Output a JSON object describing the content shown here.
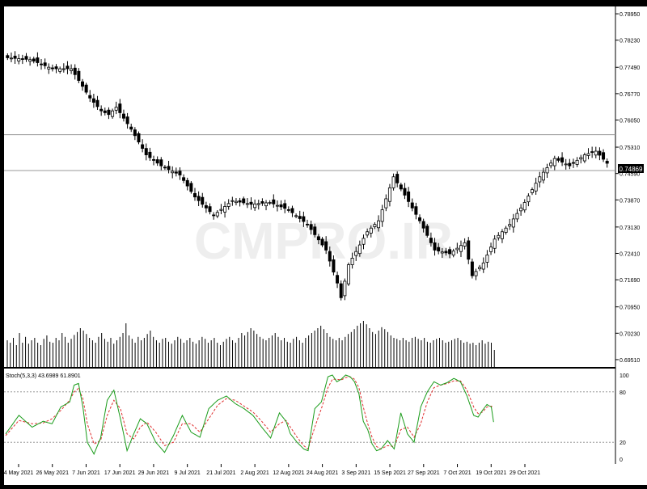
{
  "watermark": "CMPRO.IR",
  "price_panel": {
    "y_ticks": [
      "0.78950",
      "0.78230",
      "0.77490",
      "0.76770",
      "0.76050",
      "0.75310",
      "0.74590",
      "0.73870",
      "0.73130",
      "0.72410",
      "0.71690",
      "0.70950",
      "0.70230",
      "0.69510"
    ],
    "current_price_label": "0.74869",
    "levels": [
      {
        "name": "resistance",
        "value": 0.7565
      },
      {
        "name": "support",
        "value": 0.7467
      }
    ],
    "volume_visible": true
  },
  "stoch_panel": {
    "label": "Stoch(5,3,3) 43.6989 61.8901",
    "y_ticks": [
      "100",
      "80",
      "20",
      "0"
    ],
    "levels": [
      80,
      20
    ],
    "main_color": "#1a9c1a",
    "signal_color": "#e03030"
  },
  "x_ticks": [
    "4 May 2021",
    "26 May 2021",
    "7 Jun 2021",
    "17 Jun 2021",
    "29 Jun 2021",
    "9 Jul 2021",
    "21 Jul 2021",
    "2 Aug 2021",
    "12 Aug 2021",
    "24 Aug 2021",
    "3 Sep 2021",
    "15 Sep 2021",
    "27 Sep 2021",
    "7 Oct 2021",
    "19 Oct 2021",
    "29 Oct 2021"
  ],
  "chart_data": {
    "type": "candlestick",
    "ylim": [
      0.6931,
      0.7915
    ],
    "close_anchors": [
      [
        0,
        0.7775
      ],
      [
        6,
        0.777
      ],
      [
        12,
        0.7745
      ],
      [
        17,
        0.7745
      ],
      [
        22,
        0.7665
      ],
      [
        25,
        0.763
      ],
      [
        27,
        0.762
      ],
      [
        29,
        0.764
      ],
      [
        33,
        0.758
      ],
      [
        37,
        0.751
      ],
      [
        41,
        0.748
      ],
      [
        46,
        0.7455
      ],
      [
        50,
        0.7395
      ],
      [
        55,
        0.7345
      ],
      [
        60,
        0.7385
      ],
      [
        65,
        0.7375
      ],
      [
        70,
        0.738
      ],
      [
        75,
        0.736
      ],
      [
        80,
        0.732
      ],
      [
        85,
        0.725
      ],
      [
        88,
        0.716
      ],
      [
        89,
        0.712
      ],
      [
        91,
        0.721
      ],
      [
        96,
        0.73
      ],
      [
        99,
        0.733
      ],
      [
        103,
        0.745
      ],
      [
        106,
        0.74
      ],
      [
        110,
        0.733
      ],
      [
        114,
        0.725
      ],
      [
        118,
        0.724
      ],
      [
        122,
        0.727
      ],
      [
        124,
        0.718
      ],
      [
        127,
        0.7215
      ],
      [
        130,
        0.728
      ],
      [
        134,
        0.732
      ],
      [
        138,
        0.738
      ],
      [
        142,
        0.745
      ],
      [
        146,
        0.75
      ],
      [
        150,
        0.748
      ],
      [
        154,
        0.751
      ],
      [
        157,
        0.752
      ],
      [
        160,
        0.7487
      ]
    ],
    "volume_series": [
      0.55,
      0.5,
      0.6,
      0.45,
      0.7,
      0.5,
      0.62,
      0.48,
      0.55,
      0.6,
      0.5,
      0.45,
      0.58,
      0.65,
      0.52,
      0.5,
      0.6,
      0.55,
      0.7,
      0.62,
      0.5,
      0.58,
      0.66,
      0.72,
      0.8,
      0.75,
      0.68,
      0.6,
      0.55,
      0.5,
      0.62,
      0.7,
      0.58,
      0.52,
      0.6,
      0.48,
      0.55,
      0.62,
      0.7,
      0.9,
      0.65,
      0.58,
      0.5,
      0.62,
      0.55,
      0.6,
      0.68,
      0.75,
      0.62,
      0.55,
      0.5,
      0.58,
      0.6,
      0.52,
      0.48,
      0.55,
      0.62,
      0.58,
      0.5,
      0.55,
      0.6,
      0.52,
      0.48,
      0.55,
      0.62,
      0.58,
      0.5,
      0.55,
      0.6,
      0.5,
      0.45,
      0.52,
      0.58,
      0.62,
      0.55,
      0.5,
      0.6,
      0.7,
      0.65,
      0.72,
      0.8,
      0.75,
      0.68,
      0.62,
      0.58,
      0.55,
      0.6,
      0.65,
      0.7,
      0.62,
      0.55,
      0.6,
      0.52,
      0.5,
      0.58,
      0.62,
      0.55,
      0.5,
      0.6,
      0.65,
      0.7,
      0.75,
      0.8,
      0.85,
      0.78,
      0.7,
      0.62,
      0.58,
      0.55,
      0.6,
      0.55,
      0.62,
      0.68,
      0.72,
      0.78,
      0.85,
      0.9,
      0.95,
      0.88,
      0.8,
      0.72,
      0.68,
      0.75,
      0.82,
      0.78,
      0.72,
      0.65,
      0.6,
      0.58,
      0.55,
      0.6,
      0.55,
      0.52,
      0.6,
      0.62,
      0.58,
      0.55,
      0.6,
      0.52,
      0.5,
      0.55,
      0.58,
      0.6,
      0.55,
      0.5,
      0.52,
      0.55,
      0.58,
      0.6,
      0.55,
      0.5,
      0.52,
      0.48,
      0.5,
      0.45,
      0.5,
      0.55,
      0.48,
      0.52,
      0.5,
      0.35
    ],
    "stoch_main_anchors": [
      [
        0,
        30
      ],
      [
        6,
        52
      ],
      [
        12,
        38
      ],
      [
        17,
        45
      ],
      [
        21,
        42
      ],
      [
        25,
        62
      ],
      [
        29,
        68
      ],
      [
        31,
        88
      ],
      [
        33,
        90
      ],
      [
        35,
        62
      ],
      [
        37,
        20
      ],
      [
        40,
        6
      ],
      [
        43,
        25
      ],
      [
        46,
        70
      ],
      [
        49,
        82
      ],
      [
        52,
        48
      ],
      [
        55,
        10
      ],
      [
        58,
        30
      ],
      [
        61,
        48
      ],
      [
        64,
        42
      ],
      [
        68,
        20
      ],
      [
        72,
        8
      ],
      [
        76,
        28
      ],
      [
        80,
        52
      ],
      [
        84,
        32
      ],
      [
        88,
        26
      ],
      [
        92,
        60
      ],
      [
        96,
        70
      ],
      [
        100,
        75
      ],
      [
        104,
        66
      ],
      [
        108,
        60
      ],
      [
        112,
        52
      ],
      [
        116,
        38
      ],
      [
        120,
        25
      ],
      [
        124,
        55
      ],
      [
        127,
        45
      ],
      [
        129,
        30
      ],
      [
        132,
        20
      ],
      [
        135,
        12
      ],
      [
        137,
        10
      ],
      [
        140,
        60
      ],
      [
        143,
        68
      ],
      [
        146,
        98
      ],
      [
        148,
        100
      ],
      [
        150,
        92
      ],
      [
        152,
        95
      ],
      [
        154,
        100
      ],
      [
        156,
        98
      ],
      [
        158,
        92
      ],
      [
        160,
        78
      ],
      [
        162,
        45
      ],
      [
        164,
        35
      ],
      [
        166,
        18
      ],
      [
        168,
        10
      ],
      [
        170,
        12
      ],
      [
        173,
        22
      ],
      [
        176,
        12
      ],
      [
        179,
        55
      ],
      [
        182,
        30
      ],
      [
        185,
        20
      ],
      [
        188,
        62
      ],
      [
        191,
        80
      ],
      [
        194,
        92
      ],
      [
        197,
        88
      ],
      [
        200,
        91
      ],
      [
        203,
        96
      ],
      [
        206,
        92
      ],
      [
        209,
        75
      ],
      [
        212,
        52
      ],
      [
        214,
        50
      ],
      [
        216,
        58
      ],
      [
        218,
        65
      ],
      [
        220,
        62
      ],
      [
        221,
        44
      ]
    ],
    "stoch_signal_anchors": [
      [
        0,
        28
      ],
      [
        6,
        46
      ],
      [
        12,
        42
      ],
      [
        17,
        43
      ],
      [
        21,
        48
      ],
      [
        25,
        58
      ],
      [
        29,
        70
      ],
      [
        31,
        80
      ],
      [
        33,
        84
      ],
      [
        35,
        72
      ],
      [
        37,
        42
      ],
      [
        40,
        18
      ],
      [
        43,
        22
      ],
      [
        46,
        52
      ],
      [
        49,
        70
      ],
      [
        52,
        60
      ],
      [
        55,
        30
      ],
      [
        58,
        24
      ],
      [
        61,
        38
      ],
      [
        64,
        44
      ],
      [
        68,
        32
      ],
      [
        72,
        16
      ],
      [
        76,
        20
      ],
      [
        80,
        42
      ],
      [
        84,
        42
      ],
      [
        88,
        32
      ],
      [
        92,
        48
      ],
      [
        96,
        64
      ],
      [
        100,
        72
      ],
      [
        104,
        70
      ],
      [
        108,
        63
      ],
      [
        112,
        56
      ],
      [
        116,
        45
      ],
      [
        120,
        32
      ],
      [
        124,
        42
      ],
      [
        127,
        46
      ],
      [
        129,
        38
      ],
      [
        132,
        26
      ],
      [
        135,
        16
      ],
      [
        137,
        12
      ],
      [
        140,
        38
      ],
      [
        143,
        60
      ],
      [
        146,
        85
      ],
      [
        148,
        95
      ],
      [
        150,
        95
      ],
      [
        152,
        94
      ],
      [
        154,
        97
      ],
      [
        156,
        98
      ],
      [
        158,
        95
      ],
      [
        160,
        85
      ],
      [
        162,
        62
      ],
      [
        164,
        42
      ],
      [
        166,
        26
      ],
      [
        168,
        15
      ],
      [
        170,
        12
      ],
      [
        173,
        16
      ],
      [
        176,
        15
      ],
      [
        179,
        35
      ],
      [
        182,
        38
      ],
      [
        185,
        26
      ],
      [
        188,
        42
      ],
      [
        191,
        68
      ],
      [
        194,
        85
      ],
      [
        197,
        88
      ],
      [
        200,
        90
      ],
      [
        203,
        93
      ],
      [
        206,
        93
      ],
      [
        209,
        82
      ],
      [
        212,
        62
      ],
      [
        214,
        54
      ],
      [
        216,
        56
      ],
      [
        218,
        62
      ],
      [
        220,
        63
      ],
      [
        221,
        62
      ]
    ]
  }
}
